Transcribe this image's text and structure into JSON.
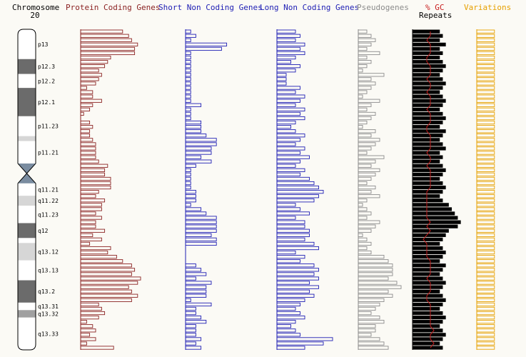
{
  "colors": {
    "background": "#fbfaf5",
    "protein": "#8b2323",
    "short_nc": "#1e1eb4",
    "long_nc": "#1e1eb4",
    "pseudo": "#8c8c8c",
    "repeats": "#000000",
    "gc": "#c81e1e",
    "variations": "#e6a000",
    "chrom_dark": "#6b6b6b",
    "chrom_mid": "#a0a0a0",
    "chrom_light": "#d6d6d6",
    "centromere": "#7a8ca0"
  },
  "headers": {
    "chromosome_title": "Chromosome",
    "chromosome_number": "20",
    "protein": "Protein Coding Genes",
    "short_nc": "Short Non Coding Genes",
    "long_nc": "Long Non Coding Genes",
    "pseudo": "Pseudogenes",
    "gc": "% GC",
    "repeats": "Repeats",
    "variations": "Variations"
  },
  "chart_data": {
    "type": "bar",
    "title": "",
    "band_labels": [
      "p13",
      "p12.3",
      "p12.2",
      "p12.1",
      "p11.23",
      "p11.21",
      "q11.21",
      "q11.22",
      "q11.23",
      "q12",
      "q13.12",
      "q13.13",
      "q13.2",
      "q13.31",
      "q13.32",
      "q13.33"
    ],
    "bands": [
      {
        "name": "p13",
        "stain": "light",
        "start": 0,
        "end": 6.0
      },
      {
        "name": "p12.3",
        "stain": "dark",
        "start": 6.0,
        "end": 9.0
      },
      {
        "name": "p12.2",
        "stain": "light",
        "start": 9.0,
        "end": 11.8
      },
      {
        "name": "p12.1",
        "stain": "dark",
        "start": 11.8,
        "end": 17.5
      },
      {
        "name": "p11.23",
        "stain": "light",
        "start": 17.5,
        "end": 21.5
      },
      {
        "name": "p11.22",
        "stain": "light2",
        "start": 21.5,
        "end": 22.5
      },
      {
        "name": "p11.21",
        "stain": "light",
        "start": 22.5,
        "end": 27.0
      },
      {
        "name": "p11.1",
        "stain": "centromere",
        "start": 27.0,
        "end": 29.0
      },
      {
        "name": "q11.1",
        "stain": "centromere",
        "start": 29.0,
        "end": 31.0
      },
      {
        "name": "q11.21",
        "stain": "light",
        "start": 31.0,
        "end": 33.5
      },
      {
        "name": "q11.22",
        "stain": "light2",
        "start": 33.5,
        "end": 35.5
      },
      {
        "name": "q11.23",
        "stain": "light",
        "start": 35.5,
        "end": 39.0
      },
      {
        "name": "q12",
        "stain": "dark",
        "start": 39.0,
        "end": 42.0
      },
      {
        "name": "q13.11",
        "stain": "light",
        "start": 42.0,
        "end": 43.0
      },
      {
        "name": "q13.12",
        "stain": "light2",
        "start": 43.0,
        "end": 46.5
      },
      {
        "name": "q13.13",
        "stain": "light",
        "start": 46.5,
        "end": 50.5
      },
      {
        "name": "q13.2",
        "stain": "dark",
        "start": 50.5,
        "end": 55.0
      },
      {
        "name": "q13.31",
        "stain": "light",
        "start": 55.0,
        "end": 56.5
      },
      {
        "name": "q13.32",
        "stain": "mid",
        "start": 56.5,
        "end": 58.0
      },
      {
        "name": "q13.33",
        "stain": "light",
        "start": 58.0,
        "end": 64.5
      }
    ],
    "bins": {
      "count": 74,
      "span_mb": [
        0,
        64.5
      ],
      "series": [
        {
          "name": "Protein Coding Genes",
          "values": [
            14,
            16,
            17,
            19,
            18,
            18,
            10,
            9,
            8,
            6,
            7,
            6,
            5,
            2,
            4,
            4,
            7,
            4,
            3,
            1,
            0,
            3,
            4,
            3,
            3,
            4,
            5,
            5,
            5,
            5,
            6,
            9,
            8,
            8,
            10,
            10,
            10,
            6,
            5,
            8,
            7,
            7,
            5,
            7,
            5,
            5,
            8,
            4,
            7,
            3,
            10,
            9,
            12,
            14,
            17,
            18,
            17,
            20,
            19,
            16,
            17,
            19,
            17,
            6,
            7,
            8,
            6,
            2,
            4,
            5,
            3,
            5,
            2,
            11
          ]
        },
        {
          "name": "Short Non Coding Genes",
          "values": [
            1,
            2,
            1,
            8,
            7,
            1,
            1,
            1,
            1,
            1,
            1,
            1,
            1,
            1,
            1,
            1,
            1,
            3,
            1,
            1,
            1,
            3,
            3,
            3,
            4,
            6,
            6,
            5,
            5,
            3,
            5,
            2,
            1,
            1,
            1,
            1,
            1,
            2,
            2,
            2,
            1,
            3,
            4,
            6,
            6,
            6,
            6,
            5,
            6,
            6,
            0,
            0,
            0,
            0,
            2,
            3,
            4,
            2,
            5,
            4,
            4,
            4,
            1,
            5,
            2,
            2,
            3,
            4,
            2,
            2,
            2,
            3,
            2,
            3
          ]
        },
        {
          "name": "Long Non Coding Genes",
          "values": [
            4,
            5,
            4,
            6,
            5,
            6,
            4,
            3,
            5,
            4,
            2,
            2,
            2,
            5,
            4,
            6,
            5,
            4,
            6,
            5,
            6,
            4,
            3,
            4,
            6,
            5,
            4,
            6,
            5,
            7,
            5,
            4,
            6,
            5,
            7,
            8,
            9,
            10,
            9,
            8,
            4,
            5,
            7,
            4,
            6,
            6,
            7,
            7,
            6,
            8,
            9,
            4,
            6,
            5,
            8,
            9,
            8,
            9,
            7,
            9,
            7,
            8,
            6,
            5,
            4,
            5,
            6,
            4,
            3,
            4,
            5,
            12,
            10,
            6
          ]
        },
        {
          "name": "Pseudogenes",
          "values": [
            2,
            3,
            4,
            3,
            2,
            5,
            2,
            3,
            2,
            1,
            6,
            3,
            4,
            3,
            2,
            1,
            5,
            3,
            2,
            4,
            3,
            2,
            1,
            4,
            3,
            5,
            4,
            3,
            2,
            6,
            4,
            3,
            5,
            4,
            3,
            2,
            4,
            3,
            5,
            2,
            1,
            2,
            3,
            2,
            5,
            4,
            3,
            1,
            2,
            3,
            2,
            3,
            6,
            7,
            8,
            8,
            8,
            7,
            9,
            10,
            7,
            8,
            6,
            5,
            4,
            3,
            5,
            6,
            4,
            4,
            3,
            5,
            6,
            7
          ]
        },
        {
          "name": "Repeats",
          "values": [
            9,
            10,
            9,
            11,
            9,
            10,
            9,
            10,
            11,
            10,
            9,
            10,
            11,
            10,
            9,
            10,
            11,
            10,
            9,
            10,
            11,
            10,
            9,
            11,
            10,
            9,
            10,
            11,
            9,
            10,
            9,
            10,
            11,
            10,
            9,
            10,
            11,
            10,
            9,
            10,
            12,
            13,
            14,
            15,
            16,
            15,
            12,
            11,
            10,
            9,
            10,
            11,
            10,
            9,
            11,
            10,
            9,
            10,
            11,
            10,
            9,
            10,
            11,
            10,
            9,
            10,
            11,
            10,
            9,
            10,
            11,
            10,
            9,
            10
          ]
        },
        {
          "name": "% GC",
          "values": [
            5,
            5,
            4,
            5,
            5,
            5,
            4,
            4,
            5,
            5,
            5,
            4,
            5,
            5,
            4,
            5,
            5,
            5,
            4,
            5,
            5,
            5,
            4,
            4,
            5,
            5,
            5,
            5,
            4,
            5,
            5,
            4,
            5,
            5,
            5,
            5,
            5,
            4,
            4,
            4,
            4,
            4,
            4,
            4,
            5,
            4,
            5,
            4,
            3,
            4,
            4,
            4,
            4,
            5,
            5,
            5,
            5,
            4,
            5,
            5,
            5,
            4,
            4,
            5,
            5,
            5,
            5,
            5,
            5,
            6,
            5,
            5,
            6,
            5
          ]
        },
        {
          "name": "Variations",
          "values": [
            4,
            4,
            4,
            4,
            4,
            4,
            4,
            4,
            4,
            4,
            4,
            4,
            4,
            4,
            4,
            4,
            4,
            4,
            4,
            4,
            4,
            4,
            4,
            4,
            4,
            4,
            4,
            4,
            4,
            4,
            4,
            4,
            4,
            4,
            4,
            4,
            4,
            4,
            4,
            4,
            4,
            4,
            4,
            4,
            4,
            4,
            4,
            4,
            4,
            4,
            4,
            4,
            4,
            4,
            4,
            4,
            4,
            4,
            4,
            4,
            4,
            4,
            4,
            4,
            4,
            4,
            4,
            4,
            4,
            4,
            4,
            4,
            4,
            4
          ]
        }
      ]
    }
  }
}
